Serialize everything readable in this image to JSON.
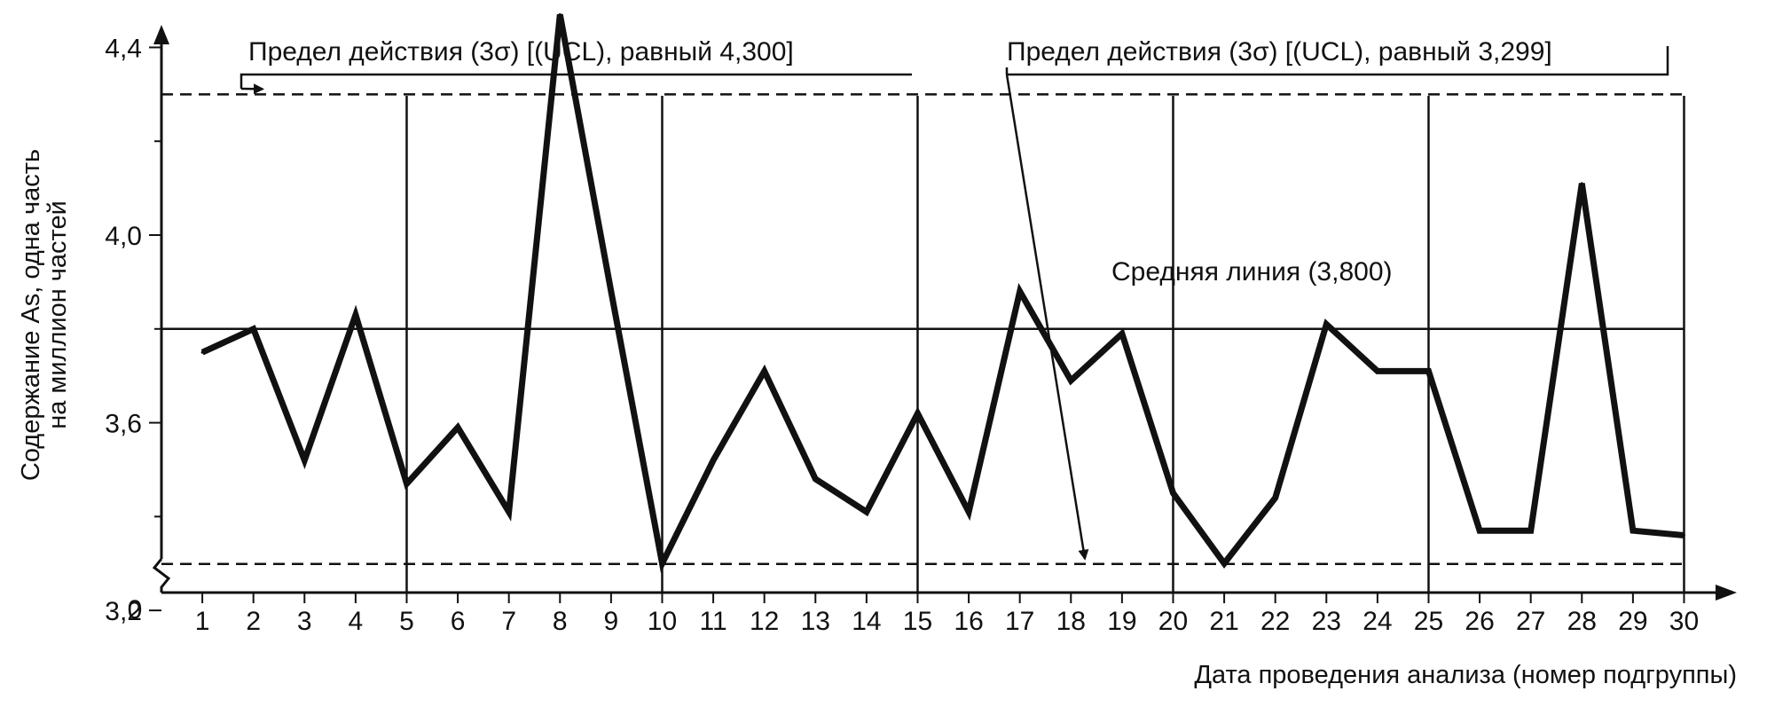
{
  "chart_data": {
    "type": "line",
    "title": "",
    "xlabel": "Дата проведения анализа (номер подгруппы)",
    "ylabel_lines": [
      "Содержание As, одна часть",
      "на миллион частей"
    ],
    "x": [
      1,
      2,
      3,
      4,
      5,
      6,
      7,
      8,
      9,
      10,
      11,
      12,
      13,
      14,
      15,
      16,
      17,
      18,
      19,
      20,
      21,
      22,
      23,
      24,
      25,
      26,
      27,
      28,
      29,
      30
    ],
    "x_tick_labels": [
      "1",
      "2",
      "3",
      "4",
      "5",
      "6",
      "7",
      "8",
      "9",
      "10",
      "11",
      "12",
      "13",
      "14",
      "15",
      "16",
      "17",
      "18",
      "19",
      "20",
      "21",
      "22",
      "23",
      "24",
      "25",
      "26",
      "27",
      "28",
      "29",
      "30"
    ],
    "series": [
      {
        "values": [
          3.75,
          3.8,
          3.52,
          3.83,
          3.47,
          3.59,
          3.41,
          4.47,
          3.88,
          3.3,
          3.52,
          3.71,
          3.48,
          3.41,
          3.62,
          3.41,
          3.88,
          3.69,
          3.79,
          3.45,
          3.3,
          3.44,
          3.81,
          3.71,
          3.71,
          3.37,
          3.37,
          4.11,
          3.37,
          3.36
        ]
      }
    ],
    "y_ticks": [
      {
        "value": 3.2,
        "label": "3,2"
      },
      {
        "value": 3.6,
        "label": "3,6"
      },
      {
        "value": 4.0,
        "label": "4,0"
      },
      {
        "value": 4.4,
        "label": "4,4"
      }
    ],
    "y_origin_label": "0",
    "ylim": [
      2.8,
      4.6
    ],
    "xlim": [
      0,
      31.4
    ],
    "y_axis_break": true,
    "vertical_gridlines_at": [
      5,
      10,
      15,
      20,
      25,
      30
    ],
    "reference_lines": [
      {
        "kind": "ucl",
        "value": 4.3,
        "style": "dashed"
      },
      {
        "kind": "center",
        "value": 3.8,
        "style": "solid"
      },
      {
        "kind": "lcl",
        "value": 3.299,
        "style": "dashed"
      }
    ],
    "annotations": {
      "ucl_label": "Предел действия (3σ) [(UCL), равный 4,300]",
      "lcl_label": "Предел действия (3σ) [(UCL), равный 3,299]",
      "center_label": "Средняя линия (3,800)"
    },
    "grid": false,
    "legend": "none"
  }
}
